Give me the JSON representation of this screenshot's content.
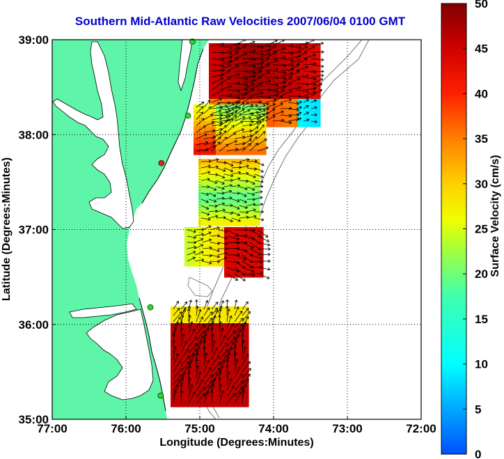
{
  "title": "Southern Mid-Atlantic Raw Velocities 2007/06/04 0100 GMT",
  "axes": {
    "xlabel": "Longitude (Degrees:Minutes)",
    "ylabel": "Latitude (Degrees:Minutes)",
    "x_ticks": [
      "77:00",
      "76:00",
      "75:00",
      "74:00",
      "73:00",
      "72:00"
    ],
    "y_ticks": [
      "39:00",
      "38:00",
      "37:00",
      "36:00",
      "35:00"
    ],
    "xlim": [
      -77,
      -72
    ],
    "ylim": [
      35,
      39
    ]
  },
  "colorbar": {
    "label": "Surface Velocity (cm/s)",
    "ticks": [
      "50",
      "45",
      "40",
      "35",
      "30",
      "25",
      "20",
      "15",
      "10",
      "5",
      "0"
    ],
    "range": [
      0,
      50
    ]
  },
  "colors": {
    "land": "#5ef5a8",
    "title": "#0000cc",
    "grid": "#000000",
    "bathymetry": "#888888"
  },
  "stations": [
    {
      "lon": -75.1,
      "lat": 38.98,
      "color": "#22dd22"
    },
    {
      "lon": -75.16,
      "lat": 38.2,
      "color": "#22dd22"
    },
    {
      "lon": -75.52,
      "lat": 37.7,
      "color": "#dd2222"
    },
    {
      "lon": -75.67,
      "lat": 36.18,
      "color": "#22dd22"
    },
    {
      "lon": -75.53,
      "lat": 35.25,
      "color": "#22dd22"
    }
  ]
}
